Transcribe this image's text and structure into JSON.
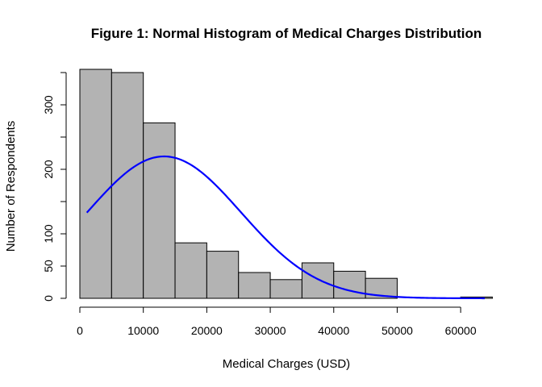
{
  "chart_data": {
    "type": "bar",
    "title": "Figure 1: Normal Histogram of Medical Charges Distribution",
    "xlabel": "Medical Charges (USD)",
    "ylabel": "Number of Respondents",
    "xlim": [
      0,
      65000
    ],
    "ylim": [
      0,
      360
    ],
    "bin_width": 5000,
    "bins": [
      {
        "start": 0,
        "end": 5000,
        "count": 355
      },
      {
        "start": 5000,
        "end": 10000,
        "count": 350
      },
      {
        "start": 10000,
        "end": 15000,
        "count": 272
      },
      {
        "start": 15000,
        "end": 20000,
        "count": 86
      },
      {
        "start": 20000,
        "end": 25000,
        "count": 73
      },
      {
        "start": 25000,
        "end": 30000,
        "count": 40
      },
      {
        "start": 30000,
        "end": 35000,
        "count": 29
      },
      {
        "start": 35000,
        "end": 40000,
        "count": 55
      },
      {
        "start": 40000,
        "end": 45000,
        "count": 42
      },
      {
        "start": 45000,
        "end": 50000,
        "count": 31
      },
      {
        "start": 50000,
        "end": 55000,
        "count": 0
      },
      {
        "start": 55000,
        "end": 60000,
        "count": 0
      },
      {
        "start": 60000,
        "end": 65000,
        "count": 2
      }
    ],
    "x_ticks": [
      "0",
      "10000",
      "20000",
      "30000",
      "40000",
      "50000",
      "60000"
    ],
    "x_tick_values": [
      0,
      10000,
      20000,
      30000,
      40000,
      50000,
      60000
    ],
    "y_ticks": [
      "0",
      "50",
      "100",
      "200",
      "300"
    ],
    "y_tick_values": [
      0,
      50,
      100,
      200,
      300
    ],
    "y_minor_ticks": [
      150,
      250,
      350
    ],
    "normal_curve": {
      "mean": 13270,
      "sd": 12110,
      "peak": 220,
      "x_start": 1100,
      "x_end": 63800
    },
    "grid": false,
    "colors": {
      "bar_fill": "#b3b3b3",
      "bar_stroke": "#000000",
      "curve": "#0000ff",
      "axis": "#000000"
    }
  }
}
